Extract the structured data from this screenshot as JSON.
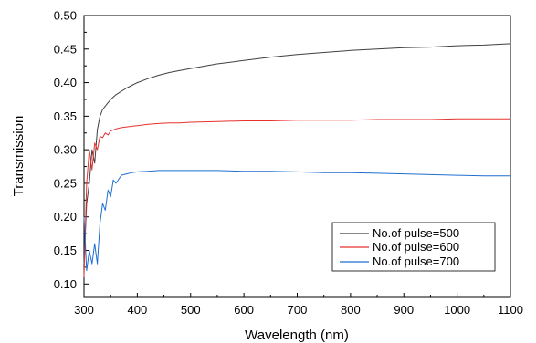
{
  "chart_data": {
    "type": "line",
    "title": "",
    "xlabel": "Wavelength (nm)",
    "ylabel": "Transmission",
    "xlim": [
      300,
      1100
    ],
    "ylim": [
      0.08,
      0.5
    ],
    "x_ticks": [
      300,
      400,
      500,
      600,
      700,
      800,
      900,
      1000,
      1100
    ],
    "x_tick_labels": [
      "300",
      "400",
      "500",
      "600",
      "700",
      "800",
      "900",
      "1000",
      "1100"
    ],
    "y_ticks": [
      0.1,
      0.15,
      0.2,
      0.25,
      0.3,
      0.35,
      0.4,
      0.45,
      0.5
    ],
    "y_tick_labels": [
      "0.10",
      "0.15",
      "0.20",
      "0.25",
      "0.30",
      "0.35",
      "0.40",
      "0.45",
      "0.50"
    ],
    "grid": false,
    "legend_position": "bottom-right",
    "series": [
      {
        "name": "No.of pulse=500",
        "color": "#3f3f3f",
        "x": [
          300,
          305,
          310,
          315,
          320,
          325,
          330,
          335,
          340,
          345,
          350,
          360,
          370,
          380,
          390,
          400,
          420,
          440,
          460,
          480,
          500,
          550,
          600,
          650,
          700,
          750,
          800,
          850,
          900,
          950,
          1000,
          1050,
          1100
        ],
        "y": [
          0.13,
          0.22,
          0.25,
          0.3,
          0.28,
          0.33,
          0.35,
          0.36,
          0.365,
          0.37,
          0.375,
          0.382,
          0.387,
          0.392,
          0.396,
          0.4,
          0.406,
          0.411,
          0.415,
          0.418,
          0.421,
          0.428,
          0.433,
          0.438,
          0.442,
          0.445,
          0.448,
          0.45,
          0.452,
          0.453,
          0.455,
          0.456,
          0.458
        ]
      },
      {
        "name": "No.of pulse=600",
        "color": "#e8322f",
        "x": [
          300,
          305,
          310,
          315,
          320,
          325,
          330,
          335,
          340,
          345,
          350,
          360,
          370,
          380,
          390,
          400,
          420,
          440,
          460,
          480,
          500,
          550,
          600,
          650,
          700,
          750,
          800,
          850,
          900,
          950,
          1000,
          1050,
          1100
        ],
        "y": [
          0.11,
          0.25,
          0.3,
          0.27,
          0.31,
          0.3,
          0.32,
          0.318,
          0.325,
          0.322,
          0.328,
          0.331,
          0.333,
          0.334,
          0.335,
          0.336,
          0.338,
          0.339,
          0.34,
          0.34,
          0.341,
          0.342,
          0.343,
          0.343,
          0.344,
          0.344,
          0.344,
          0.345,
          0.345,
          0.345,
          0.346,
          0.346,
          0.346
        ]
      },
      {
        "name": "No.of pulse=700",
        "color": "#1f6fd1",
        "x": [
          300,
          305,
          310,
          315,
          320,
          325,
          330,
          335,
          340,
          345,
          350,
          355,
          360,
          370,
          380,
          390,
          400,
          420,
          440,
          460,
          480,
          500,
          550,
          600,
          650,
          700,
          750,
          800,
          850,
          900,
          950,
          1000,
          1050,
          1100
        ],
        "y": [
          0.2,
          0.12,
          0.15,
          0.13,
          0.16,
          0.13,
          0.19,
          0.22,
          0.21,
          0.24,
          0.23,
          0.255,
          0.25,
          0.262,
          0.264,
          0.266,
          0.267,
          0.268,
          0.269,
          0.269,
          0.269,
          0.269,
          0.269,
          0.268,
          0.268,
          0.267,
          0.266,
          0.266,
          0.265,
          0.264,
          0.263,
          0.262,
          0.261,
          0.261
        ]
      }
    ]
  }
}
